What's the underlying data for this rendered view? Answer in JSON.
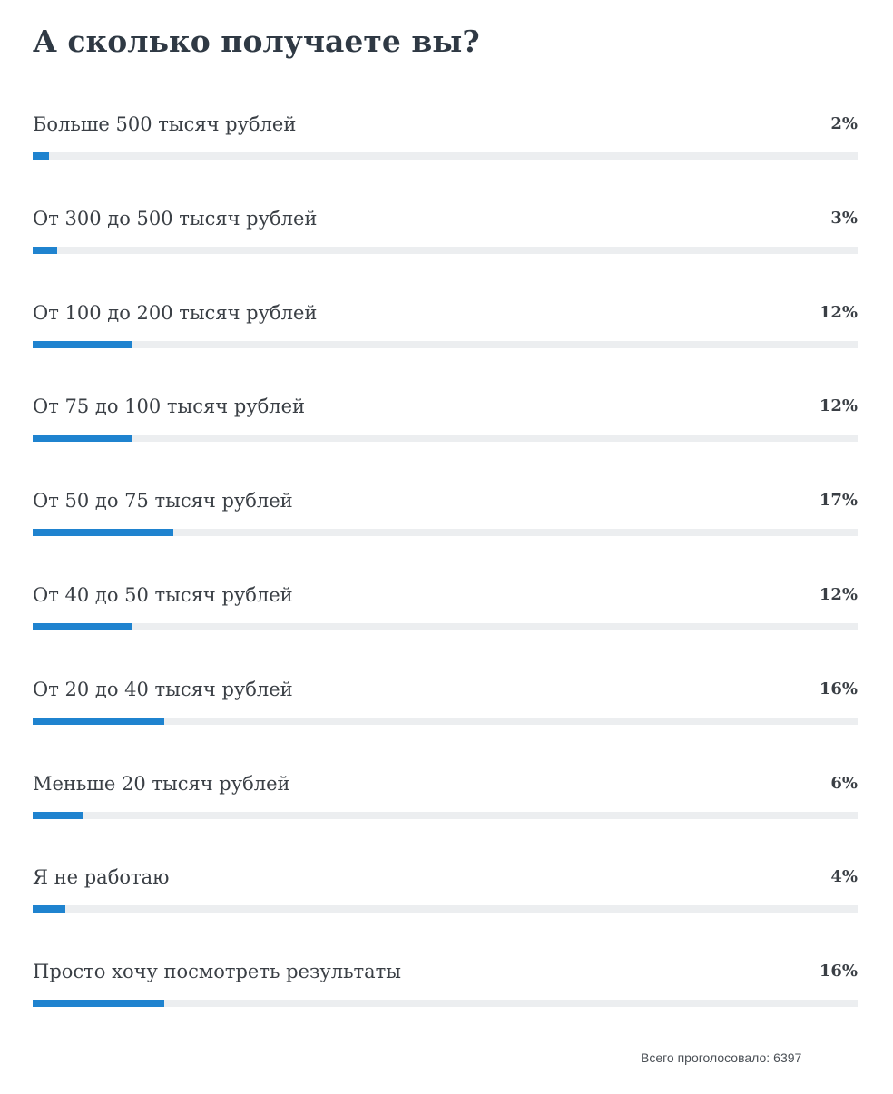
{
  "poll": {
    "title": "А сколько получаете вы?",
    "accent_color": "#1f83cf",
    "track_color": "#eceef0",
    "options": [
      {
        "label": "Больше 500 тысяч рублей",
        "percent_text": "2%",
        "percent": 2
      },
      {
        "label": "От 300 до 500 тысяч рублей",
        "percent_text": "3%",
        "percent": 3
      },
      {
        "label": "От 100 до 200 тысяч рублей",
        "percent_text": "12%",
        "percent": 12
      },
      {
        "label": "От 75 до 100 тысяч рублей",
        "percent_text": "12%",
        "percent": 12
      },
      {
        "label": "От 50 до 75 тысяч рублей",
        "percent_text": "17%",
        "percent": 17
      },
      {
        "label": "От 40 до 50 тысяч рублей",
        "percent_text": "12%",
        "percent": 12
      },
      {
        "label": "От 20 до 40 тысяч рублей",
        "percent_text": "16%",
        "percent": 16
      },
      {
        "label": "Меньше 20 тысяч рублей",
        "percent_text": "6%",
        "percent": 6
      },
      {
        "label": "Я не работаю",
        "percent_text": "4%",
        "percent": 4
      },
      {
        "label": "Просто хочу посмотреть результаты",
        "percent_text": "16%",
        "percent": 16
      }
    ],
    "total_label": "Всего проголосовало:",
    "total_votes": "6397"
  }
}
